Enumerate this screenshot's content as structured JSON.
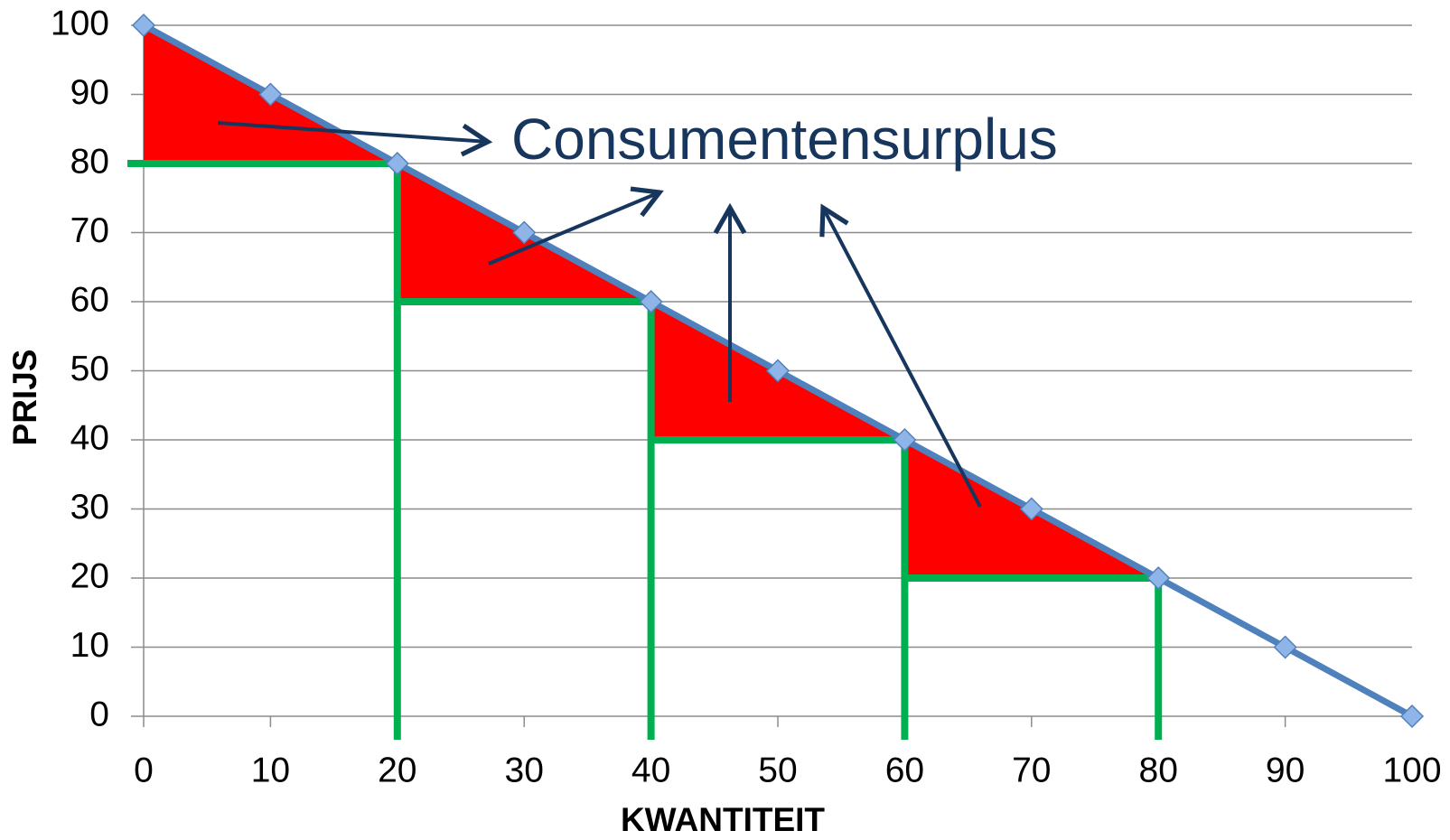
{
  "chart_data": {
    "type": "line",
    "x": [
      0,
      10,
      20,
      30,
      40,
      50,
      60,
      70,
      80,
      90,
      100
    ],
    "series": [
      {
        "color": "#4f81bd",
        "values": [
          100,
          90,
          80,
          70,
          60,
          50,
          40,
          30,
          20,
          10,
          0
        ]
      }
    ],
    "steps": {
      "x": [
        20,
        40,
        60,
        80
      ],
      "y": [
        80,
        60,
        40,
        20
      ],
      "color": "#00b050",
      "surplus_color": "#ff0000"
    },
    "xlim": [
      0,
      100
    ],
    "ylim": [
      0,
      100
    ],
    "xticks": [
      0,
      10,
      20,
      30,
      40,
      50,
      60,
      70,
      80,
      90,
      100
    ],
    "yticks": [
      0,
      10,
      20,
      30,
      40,
      50,
      60,
      70,
      80,
      90,
      100
    ],
    "xlabel": "KWANTITEIT",
    "ylabel": "PRIJS",
    "annotation": "Consumentensurplus",
    "grid": true
  }
}
